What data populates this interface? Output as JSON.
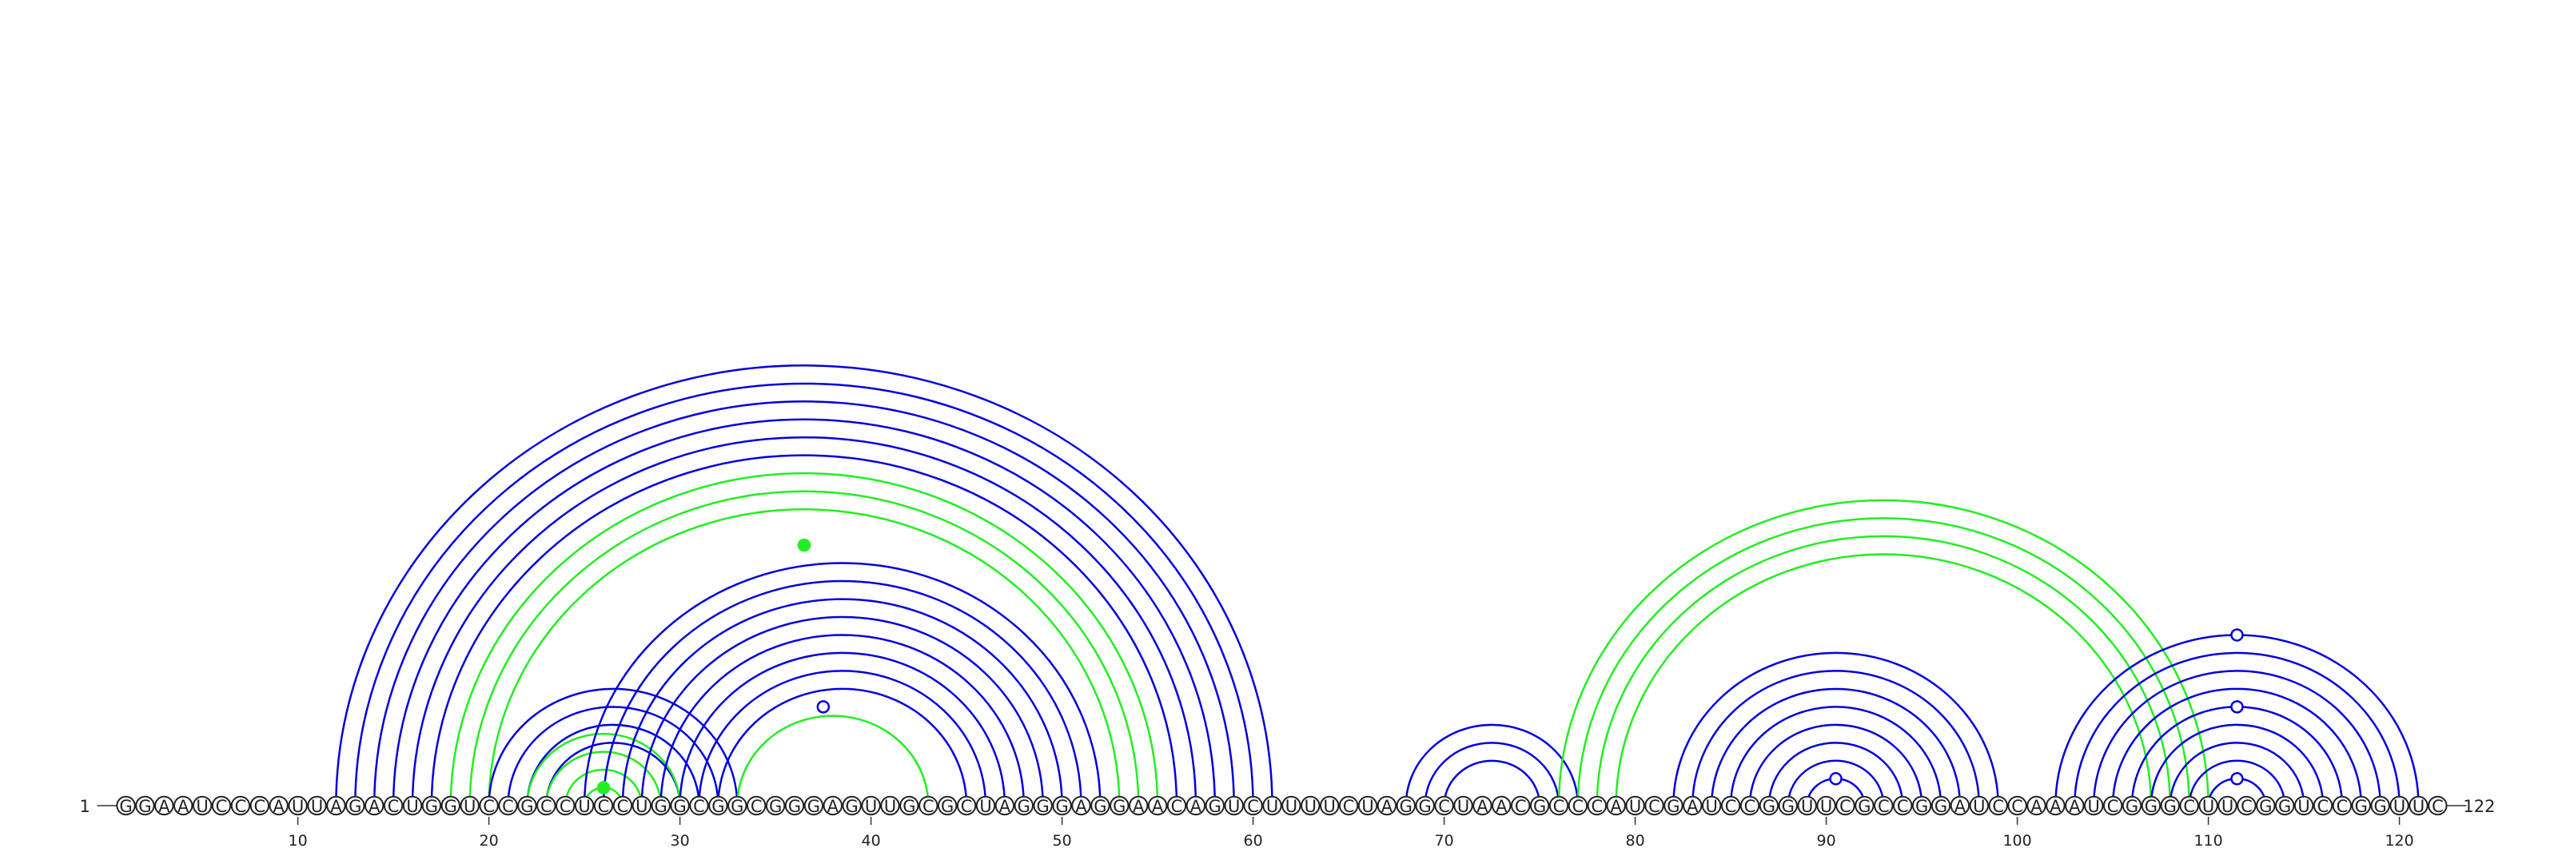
{
  "diagram": {
    "sequence": "GGAAUCCCAUUAGACUGGUCCGCCUCCUGGCGGCGGGAGUUGCGCUAGGGAGGAACAGUCUUUUCUAGGCUAACGCCCAUCGAUCCGGUUCGCCGGAUCCAAAUCGGGCUUCGGUCCGGUUC",
    "start_label": "1",
    "end_label": "122",
    "tick_positions": [
      10,
      20,
      30,
      40,
      50,
      60,
      70,
      80,
      90,
      100,
      110,
      120
    ],
    "tick_labels": [
      "10",
      "20",
      "30",
      "40",
      "50",
      "60",
      "70",
      "80",
      "90",
      "100",
      "110",
      "120"
    ],
    "colors": {
      "blue": "#0000dd",
      "green": "#22ee22"
    },
    "arc_groups": [
      {
        "color": "blue",
        "pairs": [
          [
            12,
            61
          ],
          [
            13,
            60
          ],
          [
            14,
            59
          ],
          [
            15,
            58
          ],
          [
            16,
            57
          ],
          [
            17,
            56
          ]
        ]
      },
      {
        "color": "green",
        "pairs": [
          [
            18,
            55
          ],
          [
            19,
            54
          ],
          [
            20,
            53
          ]
        ]
      },
      {
        "color": "blue",
        "pairs": [
          [
            20,
            33
          ],
          [
            21,
            32
          ],
          [
            22,
            31
          ],
          [
            23,
            30
          ]
        ]
      },
      {
        "color": "green",
        "pairs": [
          [
            22,
            30
          ],
          [
            23,
            29
          ],
          [
            24,
            28
          ],
          [
            25,
            27
          ]
        ]
      },
      {
        "color": "blue",
        "pairs": [
          [
            25,
            52
          ],
          [
            26,
            51
          ],
          [
            27,
            50
          ],
          [
            28,
            49
          ],
          [
            29,
            48
          ],
          [
            30,
            47
          ],
          [
            31,
            46
          ],
          [
            32,
            45
          ]
        ]
      },
      {
        "color": "green",
        "pairs": [
          [
            33,
            43
          ]
        ]
      },
      {
        "color": "blue",
        "pairs": [
          [
            68,
            77
          ],
          [
            69,
            76
          ],
          [
            70,
            75
          ]
        ]
      },
      {
        "color": "green",
        "pairs": [
          [
            76,
            110
          ],
          [
            77,
            109
          ],
          [
            78,
            108
          ],
          [
            79,
            107
          ]
        ]
      },
      {
        "color": "blue",
        "pairs": [
          [
            82,
            99
          ],
          [
            83,
            98
          ],
          [
            84,
            97
          ],
          [
            85,
            96
          ],
          [
            86,
            95
          ],
          [
            87,
            94
          ],
          [
            88,
            93
          ],
          [
            89,
            92
          ]
        ]
      },
      {
        "color": "blue",
        "pairs": [
          [
            102,
            121
          ],
          [
            103,
            120
          ],
          [
            104,
            119
          ],
          [
            105,
            118
          ],
          [
            106,
            117
          ],
          [
            107,
            116
          ],
          [
            108,
            115
          ],
          [
            109,
            114
          ],
          [
            110,
            113
          ]
        ]
      }
    ],
    "dots": [
      {
        "pos": 36.5,
        "pair_span": 29,
        "color": "green",
        "filled": true
      },
      {
        "pos": 26,
        "pair_span": 2,
        "color": "green",
        "filled": true
      },
      {
        "pos": 37.5,
        "pair_span": 11,
        "color": "blue",
        "filled": false
      },
      {
        "pos": 90.5,
        "pair_span": 3,
        "color": "blue",
        "filled": false
      },
      {
        "pos": 111.5,
        "pair_span": 3,
        "color": "blue",
        "filled": false
      },
      {
        "pos": 111.5,
        "pair_span": 11,
        "color": "blue",
        "filled": false
      },
      {
        "pos": 111.5,
        "pair_span": 19,
        "color": "blue",
        "filled": false
      }
    ]
  }
}
